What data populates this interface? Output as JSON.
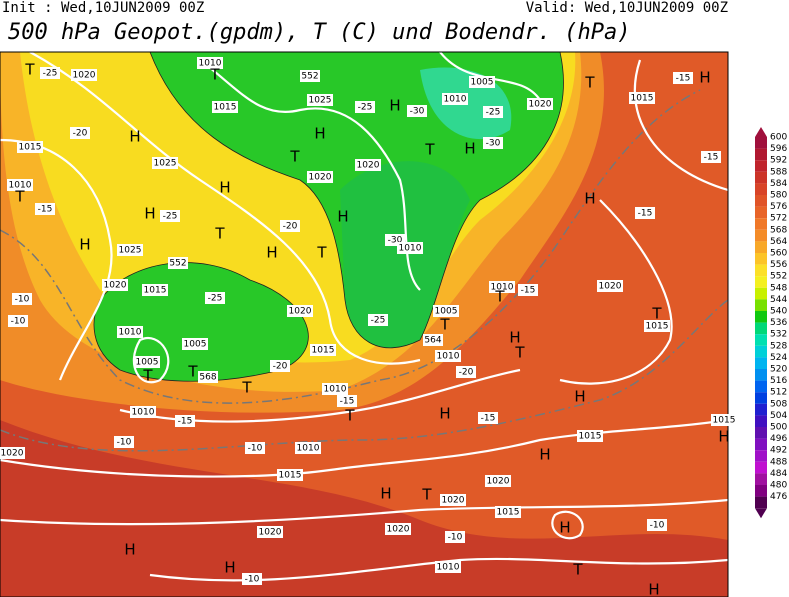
{
  "header": {
    "init": "Init : Wed,10JUN2009 00Z",
    "valid": "Valid: Wed,10JUN2009 00Z",
    "title": "500 hPa Geopot.(gpdm), T (C) und Bodendr. (hPa)"
  },
  "colorbar": {
    "levels": [
      "600",
      "596",
      "592",
      "588",
      "584",
      "580",
      "576",
      "572",
      "568",
      "564",
      "560",
      "556",
      "552",
      "548",
      "544",
      "540",
      "536",
      "532",
      "528",
      "524",
      "520",
      "516",
      "512",
      "508",
      "504",
      "500",
      "496",
      "492",
      "488",
      "484",
      "480",
      "476"
    ],
    "colors": [
      "#a0103c",
      "#b01830",
      "#c0242c",
      "#cc3428",
      "#d84428",
      "#e05428",
      "#e86428",
      "#f07828",
      "#f48c28",
      "#f8a828",
      "#fcc428",
      "#fce028",
      "#f4f020",
      "#c8f000",
      "#78e000",
      "#10c810",
      "#00d878",
      "#00e0b0",
      "#00d0d8",
      "#00b4f0",
      "#0090f0",
      "#0064f0",
      "#0040e0",
      "#2020d0",
      "#4010c0",
      "#6010b0",
      "#8010c0",
      "#a010c8",
      "#c010d0",
      "#a010a0",
      "#800080",
      "#500050"
    ]
  },
  "map": {
    "labels": [
      "1020",
      "-25",
      "T",
      "1015",
      "-20",
      "H",
      "1010",
      "T",
      "1015",
      "552",
      "1025",
      "H",
      "-25",
      "H",
      "-30",
      "T",
      "1020",
      "1010",
      "1005",
      "1020",
      "-25",
      "-30",
      "H",
      "T",
      "1020",
      "1025",
      "H",
      "-15",
      "1010",
      "T",
      "H",
      "-25",
      "T",
      "-20",
      "H",
      "T",
      "H",
      "-30",
      "1010",
      "1025",
      "H",
      "552",
      "1020",
      "1015",
      "-25",
      "1020",
      "-10",
      "-10",
      "1010",
      "1005",
      "1005",
      "T",
      "T",
      "568",
      "-20",
      "T",
      "1010",
      "-15",
      "T",
      "1015",
      "-25",
      "1005",
      "T",
      "564",
      "1010",
      "-20",
      "1010",
      "T",
      "-15",
      "H",
      "T",
      "H",
      "-15",
      "1020",
      "T",
      "1015",
      "H",
      "-15",
      "1015",
      "-15",
      "T",
      "1015",
      "H",
      "H",
      "-15",
      "H",
      "-10",
      "1010",
      "-15",
      "-10",
      "1010",
      "1015",
      "1020",
      "H",
      "T",
      "1020",
      "1020",
      "1015",
      "H",
      "-10",
      "1020",
      "-10",
      "1010",
      "H",
      "H",
      "-10",
      "1020",
      "T",
      "H",
      "H",
      "1015"
    ]
  }
}
